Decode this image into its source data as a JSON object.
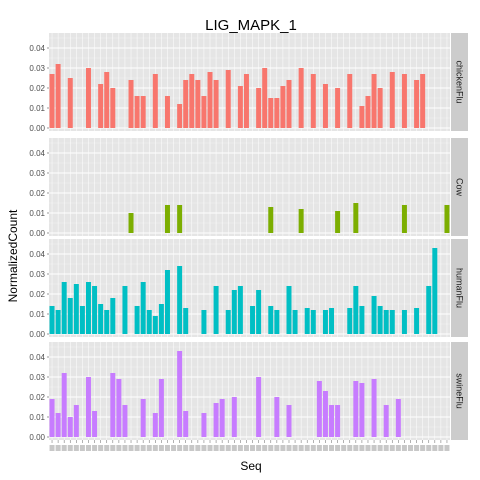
{
  "chart_data": {
    "type": "bar",
    "title": "LIG_MAPK_1",
    "xlabel": "Seq",
    "ylabel": "NormalizedCount",
    "ylim": [
      0,
      0.046
    ],
    "y_ticks": [
      "0.00",
      "0.01",
      "0.02",
      "0.03",
      "0.04"
    ],
    "y_tick_values": [
      0,
      0.01,
      0.02,
      0.03,
      0.04
    ],
    "grid": true,
    "facet_layout": "vertical, strip labels on right",
    "x_tick_labels_note": "tick labels are overlapping and illegible",
    "categories_count": 66,
    "panels": [
      {
        "name": "chickenFlu",
        "color": "#f8766d",
        "values": [
          0.027,
          0.032,
          0,
          0.025,
          0,
          0,
          0.03,
          0,
          0.022,
          0.028,
          0.02,
          0,
          0,
          0.024,
          0.016,
          0.016,
          0,
          0.027,
          0,
          0.016,
          0,
          0.012,
          0.024,
          0.027,
          0.024,
          0.016,
          0.028,
          0.024,
          0,
          0.029,
          0,
          0.021,
          0.027,
          0,
          0.02,
          0.03,
          0.015,
          0.015,
          0.021,
          0.024,
          0,
          0.03,
          0,
          0.027,
          0,
          0.022,
          0,
          0.02,
          0,
          0.027,
          0,
          0.011,
          0.016,
          0.027,
          0.02,
          0,
          0.028,
          0,
          0.027,
          0,
          0.024,
          0.027,
          0,
          0,
          0,
          0
        ],
        "extra_bars": []
      },
      {
        "name": "Cow",
        "color": "#7cae00",
        "values": [
          0,
          0,
          0,
          0,
          0,
          0,
          0,
          0,
          0,
          0,
          0,
          0,
          0,
          0,
          0,
          0,
          0,
          0,
          0,
          0,
          0,
          0,
          0,
          0,
          0,
          0,
          0,
          0,
          0,
          0,
          0,
          0,
          0,
          0,
          0,
          0,
          0,
          0,
          0,
          0,
          0,
          0,
          0,
          0,
          0,
          0,
          0,
          0,
          0,
          0,
          0,
          0,
          0,
          0,
          0,
          0,
          0,
          0,
          0,
          0,
          0,
          0,
          0,
          0,
          0,
          0
        ],
        "extra_bars": [
          {
            "index": 13,
            "value": 0.01
          },
          {
            "index": 19,
            "value": 0.014
          },
          {
            "index": 21,
            "value": 0.014
          },
          {
            "index": 36,
            "value": 0.013
          },
          {
            "index": 41,
            "value": 0.012
          },
          {
            "index": 47,
            "value": 0.011
          },
          {
            "index": 50,
            "value": 0.015
          },
          {
            "index": 58,
            "value": 0.014
          },
          {
            "index": 65,
            "value": 0.014
          }
        ]
      },
      {
        "name": "humanFlu",
        "color": "#00bfc4",
        "values": [
          0.014,
          0.012,
          0.026,
          0.018,
          0.025,
          0.014,
          0.026,
          0.024,
          0.015,
          0.012,
          0.018,
          0,
          0.024,
          0,
          0.014,
          0.026,
          0.012,
          0.009,
          0.015,
          0.032,
          0,
          0.034,
          0.013,
          0,
          0,
          0.012,
          0,
          0.024,
          0,
          0.012,
          0.022,
          0.024,
          0,
          0.014,
          0.022,
          0,
          0.014,
          0.012,
          0,
          0.024,
          0.012,
          0,
          0.013,
          0.012,
          0,
          0.012,
          0.013,
          0,
          0,
          0.013,
          0.024,
          0.014,
          0,
          0.019,
          0.014,
          0.012,
          0.012,
          0,
          0.012,
          0,
          0.013,
          0,
          0.024,
          0.043,
          0,
          0
        ],
        "extra_bars": []
      },
      {
        "name": "swineFlu",
        "color": "#c77cff",
        "values": [
          0.019,
          0.012,
          0.032,
          0.01,
          0.016,
          0,
          0.03,
          0.013,
          0,
          0,
          0.032,
          0.029,
          0.016,
          0,
          0,
          0.019,
          0,
          0.012,
          0.029,
          0,
          0,
          0.043,
          0.013,
          0,
          0,
          0.012,
          0,
          0.017,
          0.019,
          0,
          0.02,
          0,
          0,
          0,
          0.03,
          0,
          0,
          0.02,
          0,
          0.016,
          0,
          0,
          0,
          0,
          0.028,
          0.023,
          0.016,
          0.016,
          0,
          0,
          0.028,
          0.027,
          0,
          0.029,
          0,
          0.016,
          0,
          0.019,
          0,
          0,
          0,
          0,
          0,
          0,
          0,
          0
        ],
        "extra_bars": []
      }
    ]
  }
}
